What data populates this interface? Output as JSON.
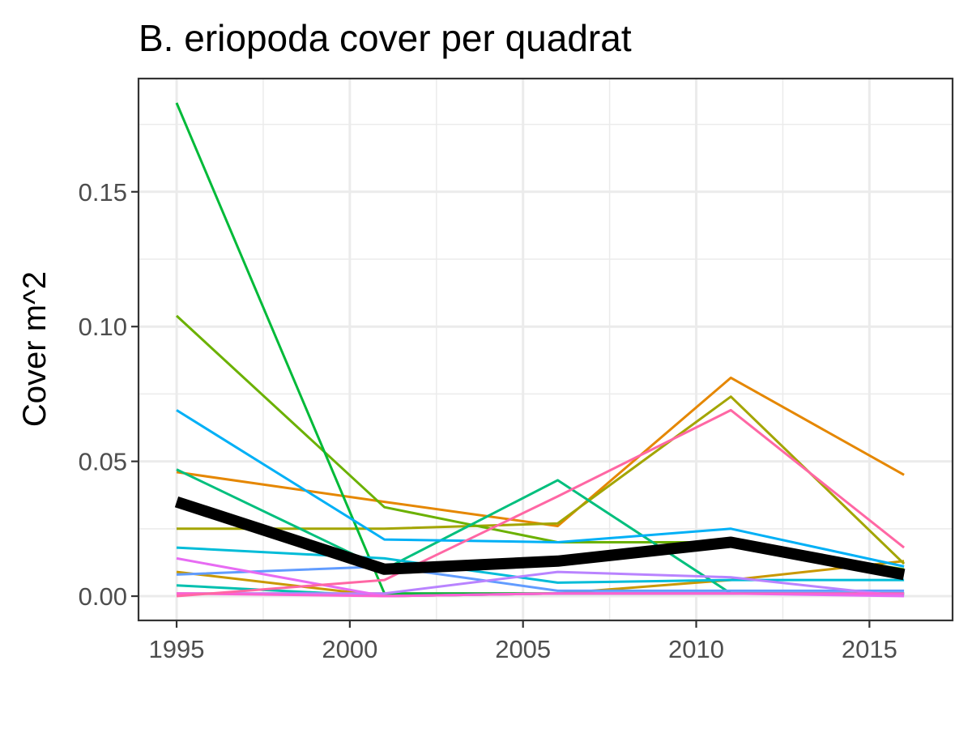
{
  "chart_data": {
    "type": "line",
    "title": "B. eriopoda cover per quadrat",
    "xlabel": "",
    "ylabel": "Cover m^2",
    "xlim": [
      1993.9,
      2017.4
    ],
    "ylim": [
      -0.009,
      0.192
    ],
    "x_ticks": [
      1995,
      2000,
      2005,
      2010,
      2015
    ],
    "x_tick_labels": [
      "1995",
      "2000",
      "2005",
      "2010",
      "2015"
    ],
    "y_ticks": [
      0.0,
      0.05,
      0.1,
      0.15
    ],
    "y_tick_labels": [
      "0.00",
      "0.05",
      "0.10",
      "0.15"
    ],
    "grid": true,
    "legend": "none",
    "x": [
      1995,
      2001,
      2006,
      2011,
      2016
    ],
    "series": [
      {
        "color": "#F8766D",
        "values": [
          0.001,
          0.001,
          0.001,
          0.001,
          0.001
        ]
      },
      {
        "color": "#E58700",
        "values": [
          0.046,
          0.035,
          0.026,
          0.081,
          0.045
        ]
      },
      {
        "color": "#C99800",
        "values": [
          0.009,
          0.0,
          0.001,
          0.006,
          0.013
        ]
      },
      {
        "color": "#A3A500",
        "values": [
          0.025,
          0.025,
          0.027,
          0.074,
          0.012
        ]
      },
      {
        "color": "#6BB100",
        "values": [
          0.104,
          0.033,
          0.02,
          0.02,
          0.01
        ]
      },
      {
        "color": "#00BA38",
        "values": [
          0.183,
          0.001,
          0.001,
          0.001,
          0.001
        ]
      },
      {
        "color": "#00BF7D",
        "values": [
          0.047,
          0.01,
          0.043,
          0.001,
          0.001
        ]
      },
      {
        "color": "#00C0AF",
        "values": [
          0.004,
          0.0,
          0.001,
          0.001,
          0.001
        ]
      },
      {
        "color": "#00BCD8",
        "values": [
          0.018,
          0.014,
          0.005,
          0.006,
          0.006
        ]
      },
      {
        "color": "#00B0F6",
        "values": [
          0.069,
          0.021,
          0.02,
          0.025,
          0.011
        ]
      },
      {
        "color": "#619CFF",
        "values": [
          0.008,
          0.011,
          0.002,
          0.002,
          0.002
        ]
      },
      {
        "color": "#B983FF",
        "values": [
          0.001,
          0.001,
          0.009,
          0.007,
          0.0
        ]
      },
      {
        "color": "#E76BF3",
        "values": [
          0.014,
          0.0,
          0.001,
          0.001,
          0.0
        ]
      },
      {
        "color": "#FD61D1",
        "values": [
          0.001,
          0.0,
          0.001,
          0.001,
          0.001
        ]
      },
      {
        "color": "#FF67A4",
        "values": [
          0.0,
          0.006,
          0.037,
          0.069,
          0.018
        ]
      }
    ],
    "mean_series": {
      "color": "#000000",
      "values": [
        0.035,
        0.01,
        0.013,
        0.02,
        0.008
      ]
    }
  }
}
